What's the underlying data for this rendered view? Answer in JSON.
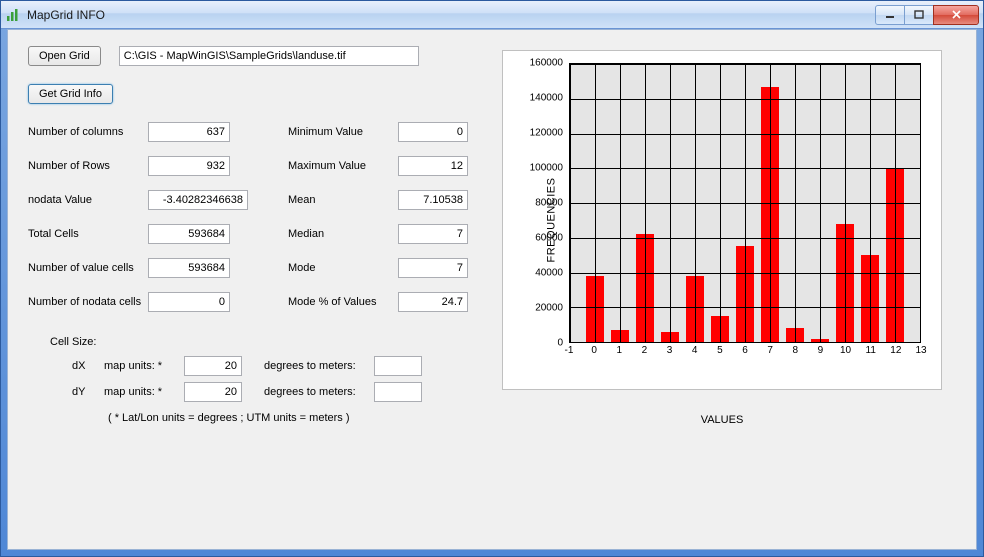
{
  "window": {
    "title": "MapGrid INFO"
  },
  "toolbar": {
    "open_label": "Open Grid",
    "path_value": "C:\\GIS - MapWinGIS\\SampleGrids\\landuse.tif",
    "getinfo_label": "Get Grid Info"
  },
  "stats": {
    "left": [
      {
        "label": "Number of columns",
        "value": "637"
      },
      {
        "label": "Number of  Rows",
        "value": "932"
      },
      {
        "label": "nodata Value",
        "value": "-3.40282346638"
      },
      {
        "label": "Total Cells",
        "value": "593684"
      },
      {
        "label": "Number of  value cells",
        "value": "593684"
      },
      {
        "label": "Number of  nodata cells",
        "value": "0"
      }
    ],
    "right": [
      {
        "label": "Minimum Value",
        "value": "0"
      },
      {
        "label": "Maximum Value",
        "value": "12"
      },
      {
        "label": "Mean",
        "value": "7.10538"
      },
      {
        "label": "Median",
        "value": "7"
      },
      {
        "label": "Mode",
        "value": "7"
      },
      {
        "label": "Mode % of Values",
        "value": "24.7"
      }
    ]
  },
  "cellsize": {
    "header": "Cell Size:",
    "rows": [
      {
        "axis": "dX",
        "units_lbl": "map units: *",
        "value": "20",
        "conv_lbl": "degrees to meters:",
        "conv_val": ""
      },
      {
        "axis": "dY",
        "units_lbl": "map units: *",
        "value": "20",
        "conv_lbl": "degrees to meters:",
        "conv_val": ""
      }
    ],
    "footnote": "( * Lat/Lon units = degrees ;   UTM units = meters )"
  },
  "chart": {
    "type": "bar",
    "x_label": "VALUES",
    "y_label": "FREQUENCIES",
    "xlim": [
      -1,
      13
    ],
    "ylim": [
      0,
      160000
    ],
    "ytick_step": 20000,
    "xtick_step": 1,
    "bar_color": "#ff0000",
    "plot_background": "#e5e5e5",
    "grid_color": "#000000",
    "frame_background": "#ffffff",
    "categories": [
      0,
      1,
      2,
      3,
      4,
      5,
      6,
      7,
      8,
      9,
      10,
      11,
      12
    ],
    "values": [
      38000,
      7000,
      62000,
      6000,
      38000,
      15000,
      55000,
      147000,
      8000,
      2000,
      68000,
      50000,
      100000
    ],
    "bar_width": 0.7,
    "title_fontsize": 11,
    "tick_fontsize": 10
  }
}
